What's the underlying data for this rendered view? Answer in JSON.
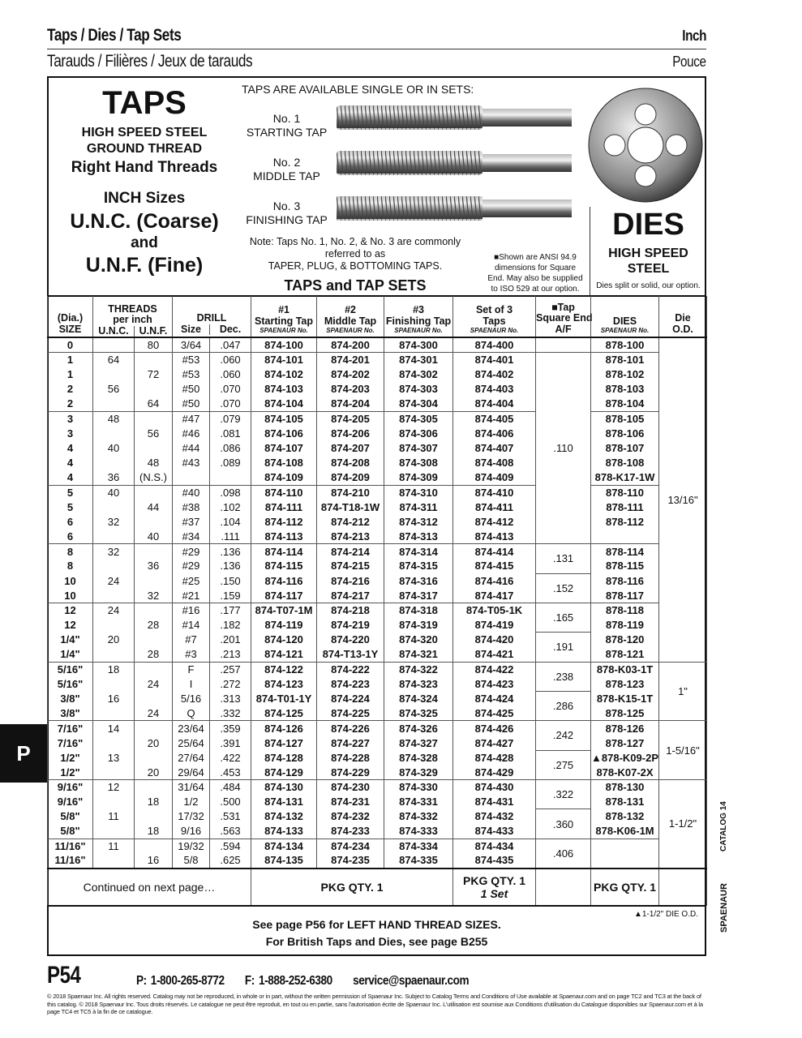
{
  "header": {
    "title": "Taps / Dies / Tap Sets",
    "title_fr": "Tarauds / Filières / Jeux de tarauds",
    "unit": "Inch",
    "unit_fr": "Pouce"
  },
  "taps_panel": {
    "title": "TAPS",
    "line1": "HIGH SPEED STEEL",
    "line2": "GROUND THREAD",
    "line3": "Right Hand Threads",
    "line4": "INCH Sizes",
    "line5": "U.N.C. (Coarse)",
    "line6": "and",
    "line7": "U.N.F. (Fine)"
  },
  "sets_panel": {
    "heading": "TAPS ARE AVAILABLE SINGLE OR IN SETS:",
    "taps": [
      {
        "no": "No. 1",
        "name": "STARTING TAP"
      },
      {
        "no": "No. 2",
        "name": "MIDDLE TAP"
      },
      {
        "no": "No. 3",
        "name": "FINISHING TAP"
      }
    ],
    "note1": "Note:  Taps No. 1, No. 2, & No. 3 are commonly",
    "note2": "referred to as",
    "note3": "TAPER, PLUG, & BOTTOMING TAPS.",
    "subtitle": "TAPS and TAP SETS",
    "ansi_note": [
      "■Shown are ANSI 94.9",
      "dimensions for Square",
      "End. May also be supplied",
      "to ISO 529 at our option."
    ]
  },
  "dies_panel": {
    "title": "DIES",
    "line1": "HIGH SPEED",
    "line2": "STEEL",
    "note": "Dies split or solid, our option."
  },
  "table": {
    "headers": {
      "size": [
        "(Dia.)",
        "SIZE"
      ],
      "threads": [
        "THREADS",
        "per inch"
      ],
      "unc": "U.N.C.",
      "unf": "U.N.F.",
      "drill": "DRILL",
      "drill_size": "Size",
      "drill_dec": "Dec.",
      "t1": [
        "#1",
        "Starting Tap"
      ],
      "t2": [
        "#2",
        "Middle Tap"
      ],
      "t3": [
        "#3",
        "Finishing Tap"
      ],
      "set": [
        "Set of 3",
        "Taps"
      ],
      "sq": [
        "■Tap",
        "Square End",
        "A/F"
      ],
      "dies": "DIES",
      "od": [
        "Die",
        "O.D."
      ],
      "spaenaur_no": "SPAENAUR No."
    },
    "rows": [
      [
        "0",
        "",
        "80",
        "3/64",
        ".047",
        "874-100",
        "874-200",
        "874-300",
        "874-400",
        "878-100"
      ],
      [
        "1",
        "64",
        "",
        "#53",
        ".060",
        "874-101",
        "874-201",
        "874-301",
        "874-401",
        "878-101"
      ],
      [
        "1",
        "",
        "72",
        "#53",
        ".060",
        "874-102",
        "874-202",
        "874-302",
        "874-402",
        "878-102"
      ],
      [
        "2",
        "56",
        "",
        "#50",
        ".070",
        "874-103",
        "874-203",
        "874-303",
        "874-403",
        "878-103"
      ],
      [
        "2",
        "",
        "64",
        "#50",
        ".070",
        "874-104",
        "874-204",
        "874-304",
        "874-404",
        "878-104"
      ],
      [
        "3",
        "48",
        "",
        "#47",
        ".079",
        "874-105",
        "874-205",
        "874-305",
        "874-405",
        "878-105"
      ],
      [
        "3",
        "",
        "56",
        "#46",
        ".081",
        "874-106",
        "874-206",
        "874-306",
        "874-406",
        "878-106"
      ],
      [
        "4",
        "40",
        "",
        "#44",
        ".086",
        "874-107",
        "874-207",
        "874-307",
        "874-407",
        "878-107"
      ],
      [
        "4",
        "",
        "48",
        "#43",
        ".089",
        "874-108",
        "874-208",
        "874-308",
        "874-408",
        "878-108"
      ],
      [
        "4",
        "36",
        "(N.S.)",
        "",
        "",
        "874-109",
        "874-209",
        "874-309",
        "874-409",
        "878-K17-1W"
      ],
      [
        "5",
        "40",
        "",
        "#40",
        ".098",
        "874-110",
        "874-210",
        "874-310",
        "874-410",
        "878-110"
      ],
      [
        "5",
        "",
        "44",
        "#38",
        ".102",
        "874-111",
        "874-T18-1W",
        "874-311",
        "874-411",
        "878-111"
      ],
      [
        "6",
        "32",
        "",
        "#37",
        ".104",
        "874-112",
        "874-212",
        "874-312",
        "874-412",
        "878-112"
      ],
      [
        "6",
        "",
        "40",
        "#34",
        ".111",
        "874-113",
        "874-213",
        "874-313",
        "874-413",
        ""
      ],
      [
        "8",
        "32",
        "",
        "#29",
        ".136",
        "874-114",
        "874-214",
        "874-314",
        "874-414",
        "878-114"
      ],
      [
        "8",
        "",
        "36",
        "#29",
        ".136",
        "874-115",
        "874-215",
        "874-315",
        "874-415",
        "878-115"
      ],
      [
        "10",
        "24",
        "",
        "#25",
        ".150",
        "874-116",
        "874-216",
        "874-316",
        "874-416",
        "878-116"
      ],
      [
        "10",
        "",
        "32",
        "#21",
        ".159",
        "874-117",
        "874-217",
        "874-317",
        "874-417",
        "878-117"
      ],
      [
        "12",
        "24",
        "",
        "#16",
        ".177",
        "874-T07-1M",
        "874-218",
        "874-318",
        "874-T05-1K",
        "878-118"
      ],
      [
        "12",
        "",
        "28",
        "#14",
        ".182",
        "874-119",
        "874-219",
        "874-319",
        "874-419",
        "878-119"
      ],
      [
        "1/4\"",
        "20",
        "",
        "#7",
        ".201",
        "874-120",
        "874-220",
        "874-320",
        "874-420",
        "878-120"
      ],
      [
        "1/4\"",
        "",
        "28",
        "#3",
        ".213",
        "874-121",
        "874-T13-1Y",
        "874-321",
        "874-421",
        "878-121"
      ],
      [
        "5/16\"",
        "18",
        "",
        "F",
        ".257",
        "874-122",
        "874-222",
        "874-322",
        "874-422",
        "878-K03-1T"
      ],
      [
        "5/16\"",
        "",
        "24",
        "I",
        ".272",
        "874-123",
        "874-223",
        "874-323",
        "874-423",
        "878-123"
      ],
      [
        "3/8\"",
        "16",
        "",
        "5/16",
        ".313",
        "874-T01-1Y",
        "874-224",
        "874-324",
        "874-424",
        "878-K15-1T"
      ],
      [
        "3/8\"",
        "",
        "24",
        "Q",
        ".332",
        "874-125",
        "874-225",
        "874-325",
        "874-425",
        "878-125"
      ],
      [
        "7/16\"",
        "14",
        "",
        "23/64",
        ".359",
        "874-126",
        "874-226",
        "874-326",
        "874-426",
        "878-126"
      ],
      [
        "7/16\"",
        "",
        "20",
        "25/64",
        ".391",
        "874-127",
        "874-227",
        "874-327",
        "874-427",
        "878-127"
      ],
      [
        "1/2\"",
        "13",
        "",
        "27/64",
        ".422",
        "874-128",
        "874-228",
        "874-328",
        "874-428",
        "▲878-K09-2P"
      ],
      [
        "1/2\"",
        "",
        "20",
        "29/64",
        ".453",
        "874-129",
        "874-229",
        "874-329",
        "874-429",
        "878-K07-2X"
      ],
      [
        "9/16\"",
        "12",
        "",
        "31/64",
        ".484",
        "874-130",
        "874-230",
        "874-330",
        "874-430",
        "878-130"
      ],
      [
        "9/16\"",
        "",
        "18",
        "1/2",
        ".500",
        "874-131",
        "874-231",
        "874-331",
        "874-431",
        "878-131"
      ],
      [
        "5/8\"",
        "11",
        "",
        "17/32",
        ".531",
        "874-132",
        "874-232",
        "874-332",
        "874-432",
        "878-132"
      ],
      [
        "5/8\"",
        "",
        "18",
        "9/16",
        ".563",
        "874-133",
        "874-233",
        "874-333",
        "874-433",
        "878-K06-1M"
      ],
      [
        "11/16\"",
        "11",
        "",
        "19/32",
        ".594",
        "874-134",
        "874-234",
        "874-334",
        "874-434",
        ""
      ],
      [
        "11/16\"",
        "",
        "16",
        "5/8",
        ".625",
        "874-135",
        "874-235",
        "874-335",
        "874-435",
        ""
      ]
    ],
    "group_starts": [
      0,
      1,
      5,
      10,
      14,
      18,
      22,
      26,
      30,
      34
    ],
    "square_end": [
      {
        "value": "",
        "rows": 1
      },
      {
        "value": ".110",
        "rows": 13
      },
      {
        "value": ".131",
        "rows": 2
      },
      {
        "value": ".152",
        "rows": 2
      },
      {
        "value": ".165",
        "rows": 2
      },
      {
        "value": ".191",
        "rows": 2
      },
      {
        "value": ".238",
        "rows": 2
      },
      {
        "value": ".286",
        "rows": 2
      },
      {
        "value": ".242",
        "rows": 2
      },
      {
        "value": ".275",
        "rows": 2
      },
      {
        "value": ".322",
        "rows": 2
      },
      {
        "value": ".360",
        "rows": 2
      },
      {
        "value": ".406",
        "rows": 2
      }
    ],
    "die_od": [
      {
        "value": "13/16\"",
        "rows": 22
      },
      {
        "value": "1\"",
        "rows": 4
      },
      {
        "value": "1-5/16\"",
        "rows": 4
      },
      {
        "value": "1-1/2\"",
        "rows": 6
      }
    ],
    "footer": {
      "continued": "Continued on next page…",
      "pkg_taps": "PKG QTY. 1",
      "pkg_set": "PKG QTY. 1",
      "pkg_set_sub": "1 Set",
      "pkg_dies": "PKG QTY. 1"
    }
  },
  "notes": {
    "die_od_note": "▲1-1/2\" DIE O.D.",
    "lh_note": "See page P56 for LEFT HAND THREAD SIZES.",
    "british_note": "For British Taps and Dies, see page B255"
  },
  "side": {
    "tab": "P",
    "catalog": "CATALOG 14",
    "brand": "SPAENAUR"
  },
  "footer": {
    "page": "P54",
    "phone": "P: 1-800-265-8772",
    "fax": "F: 1-888-252-6380",
    "email": "service@spaenaur.com",
    "legal": "© 2018 Spaenaur Inc. All rights reserved. Catalog may not be reproduced, in whole or in part, without the written permission of Spaenaur Inc. Subject to Catalog Terms and Conditions of Use available at Spaenaur.com and on page TC2 and TC3 at the back of this catalog. © 2018 Spaenaur Inc. Tous droits réservés. Le catalogue ne peut être reproduit, en tout ou en partie, sans l'autorisation écrite de Spaenaur Inc. L'utilisation est soumise aux Conditions d'utilisation du Catalogue disponibles sur Spaenaur.com et à la page TC4 et TC5 à la fin de ce catalogue."
  }
}
